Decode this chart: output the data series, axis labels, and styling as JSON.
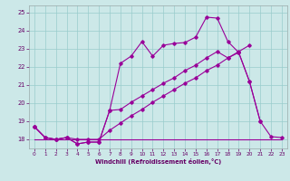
{
  "xlabel": "Windchill (Refroidissement éolien,°C)",
  "xlim": [
    -0.5,
    23.5
  ],
  "ylim": [
    17.5,
    25.4
  ],
  "yticks": [
    18,
    19,
    20,
    21,
    22,
    23,
    24,
    25
  ],
  "xticks": [
    0,
    1,
    2,
    3,
    4,
    5,
    6,
    7,
    8,
    9,
    10,
    11,
    12,
    13,
    14,
    15,
    16,
    17,
    18,
    19,
    20,
    21,
    22,
    23
  ],
  "bg_color": "#cce8e8",
  "grid_color": "#99cccc",
  "line_color": "#990099",
  "line1_x": [
    0,
    1,
    2,
    3,
    4,
    5,
    6,
    7,
    8,
    9,
    10,
    11,
    12,
    13,
    14,
    15,
    16,
    17,
    18,
    19,
    20,
    21
  ],
  "line1_y": [
    18.7,
    18.1,
    18.0,
    18.1,
    17.75,
    17.85,
    17.85,
    19.6,
    22.2,
    22.6,
    23.4,
    22.6,
    23.2,
    23.3,
    23.35,
    23.65,
    24.75,
    24.7,
    23.4,
    22.8,
    21.2,
    19.0
  ],
  "line2_x": [
    0,
    1,
    2,
    3,
    4,
    5,
    6,
    7,
    8,
    9,
    10,
    11,
    12,
    13,
    14,
    15,
    16,
    17,
    18,
    19,
    20
  ],
  "line2_y": [
    18.7,
    18.1,
    18.0,
    18.1,
    18.0,
    18.0,
    18.0,
    18.5,
    18.9,
    19.3,
    19.65,
    20.05,
    20.4,
    20.75,
    21.1,
    21.4,
    21.8,
    22.1,
    22.5,
    22.85,
    23.2
  ],
  "line3_x": [
    0,
    23
  ],
  "line3_y": [
    18.0,
    18.0
  ],
  "line4_x": [
    0,
    1,
    2,
    3,
    4,
    5,
    6,
    7,
    8,
    9,
    10,
    11,
    12,
    13,
    14,
    15,
    16,
    17,
    18,
    19,
    20,
    21,
    22,
    23
  ],
  "line4_y": [
    18.7,
    18.1,
    18.0,
    18.1,
    17.75,
    17.85,
    17.85,
    19.6,
    19.65,
    20.05,
    20.4,
    20.75,
    21.1,
    21.4,
    21.8,
    22.1,
    22.5,
    22.85,
    22.5,
    22.8,
    21.2,
    19.0,
    18.15,
    18.1
  ]
}
